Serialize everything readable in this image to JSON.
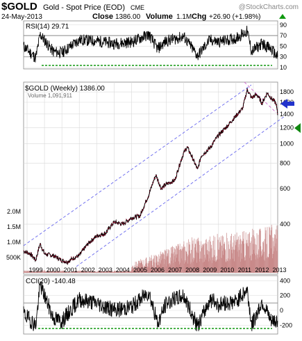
{
  "header": {
    "symbol": "$GOLD",
    "name": "Gold - Spot Price (EOD)",
    "exchange": "CME",
    "watermark": "@StockCharts.com",
    "date": "24-May-2013",
    "close_label": "Close",
    "close_value": "1386.00",
    "volume_label": "Volume",
    "volume_value": "1.1M",
    "chg_label": "Chg",
    "chg_value": "+26.90 (+1.98%)"
  },
  "rsi_panel": {
    "label": "RSI(14) 29.71",
    "ticks": [
      "90",
      "70",
      "50",
      "30",
      "10"
    ],
    "reference_levels": [
      70,
      30
    ]
  },
  "price_panel": {
    "legend_title": "$GOLD (Weekly) 1386.00",
    "legend_volume": "Volume 1,091,911",
    "price_ticks": [
      "1800",
      "1600",
      "1400",
      "1200",
      "1000",
      "800",
      "600",
      "400"
    ],
    "volume_ticks": [
      "2.0M",
      "1.5M",
      "1.0M",
      "500K"
    ]
  },
  "x_axis": {
    "years": [
      "1999",
      "2000",
      "2001",
      "2002",
      "2003",
      "2004",
      "2005",
      "2006",
      "2007",
      "2008",
      "2009",
      "2010",
      "2011",
      "2012",
      "2013"
    ]
  },
  "cci_panel": {
    "label": "CCI(20) -140.48",
    "ticks": [
      "400",
      "200",
      "0",
      "-200"
    ],
    "reference_levels": [
      100,
      -100
    ]
  },
  "colors": {
    "grid": "#d9d9d9",
    "price_line": "#000000",
    "price_down": "#cc0033",
    "volume_bar": "#c98a8a",
    "channel": "#6666ee",
    "green_dashed": "#119911",
    "gray_ref": "#888888",
    "arrow_blue": "#2233cc",
    "arrow_green": "#118811",
    "chg_positive": "#119911"
  },
  "chart_data": [
    {
      "type": "line",
      "name": "gold-price-weekly",
      "x": [
        1998.8,
        1999.2,
        1999.5,
        1999.75,
        2000.0,
        2000.5,
        2001.0,
        2001.3,
        2001.6,
        2002.0,
        2002.5,
        2003.0,
        2003.5,
        2004.0,
        2004.5,
        2005.0,
        2005.5,
        2006.0,
        2006.4,
        2006.7,
        2007.0,
        2007.5,
        2008.0,
        2008.2,
        2008.8,
        2009.0,
        2009.5,
        2010.0,
        2010.5,
        2011.0,
        2011.4,
        2011.65,
        2011.9,
        2012.2,
        2012.5,
        2012.8,
        2013.0,
        2013.3,
        2013.4
      ],
      "y": [
        295,
        285,
        265,
        320,
        285,
        280,
        265,
        260,
        270,
        280,
        320,
        350,
        360,
        410,
        400,
        430,
        440,
        560,
        700,
        600,
        630,
        660,
        900,
        960,
        740,
        870,
        950,
        1100,
        1220,
        1370,
        1500,
        1850,
        1680,
        1750,
        1580,
        1780,
        1690,
        1580,
        1386
      ],
      "ylim": [
        230,
        1950
      ],
      "scale": "log"
    },
    {
      "type": "bar",
      "name": "volume",
      "x_start": 1998.8,
      "x_end": 2013.4,
      "values_summary": "volume rises from near zero before 2005 to peaks around 1.0M-2.0M after 2008",
      "ylim": [
        0,
        2500000
      ]
    },
    {
      "type": "line",
      "name": "rsi-14",
      "x": [
        1998.8,
        1999.5,
        1999.75,
        2000.5,
        2001.0,
        2002.0,
        2003.0,
        2004.0,
        2005.0,
        2006.0,
        2006.5,
        2007.0,
        2008.0,
        2008.8,
        2009.5,
        2010.0,
        2011.0,
        2011.65,
        2011.9,
        2012.5,
        2013.0,
        2013.4
      ],
      "y": [
        50,
        28,
        72,
        40,
        38,
        62,
        60,
        55,
        58,
        72,
        45,
        60,
        68,
        32,
        62,
        58,
        65,
        78,
        40,
        55,
        45,
        29.71
      ],
      "ylim": [
        10,
        95
      ]
    },
    {
      "type": "line",
      "name": "cci-20",
      "x": [
        1998.8,
        1999.5,
        1999.75,
        2000.5,
        2001.0,
        2002.0,
        2003.0,
        2004.0,
        2005.0,
        2006.0,
        2006.5,
        2007.0,
        2008.0,
        2008.8,
        2009.5,
        2010.0,
        2011.0,
        2011.65,
        2011.9,
        2012.5,
        2013.0,
        2013.4
      ],
      "y": [
        -50,
        -200,
        350,
        -100,
        -150,
        150,
        100,
        0,
        50,
        250,
        -180,
        100,
        200,
        -220,
        150,
        80,
        120,
        280,
        -200,
        120,
        -150,
        -140.48
      ],
      "ylim": [
        -300,
        450
      ]
    }
  ]
}
